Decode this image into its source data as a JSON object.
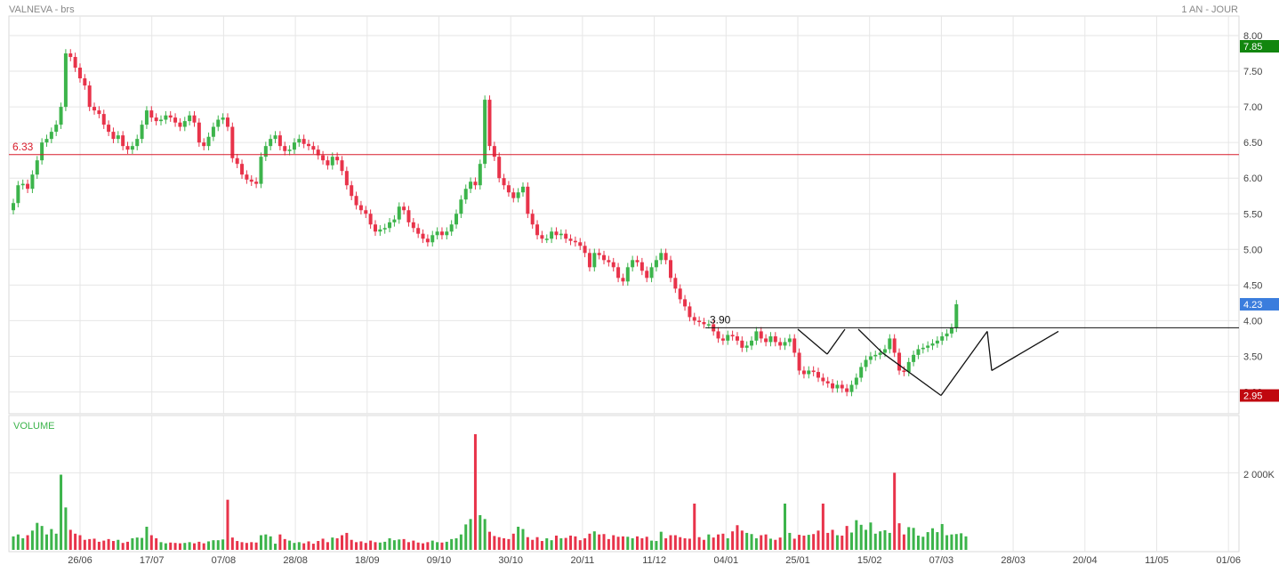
{
  "header": {
    "title": "VALNEVA - brs",
    "period": "1 AN - JOUR"
  },
  "colors": {
    "up": "#3cb44b",
    "down": "#e8334a",
    "grid": "#e6e6e6",
    "resistance": "#d81b2a",
    "neckline": "#111111",
    "last_price_badge": "#3b7ddd",
    "high_badge": "#12860f",
    "low_badge": "#c0080f",
    "volume_label": "#3cb44b"
  },
  "chart_data": [
    {
      "type": "candlestick",
      "title": "VALNEVA - brs",
      "x_tick_labels": [
        "26/06",
        "17/07",
        "07/08",
        "28/08",
        "18/09",
        "09/10",
        "30/10",
        "20/11",
        "11/12",
        "04/01",
        "25/01",
        "15/02",
        "07/03",
        "28/03",
        "20/04",
        "11/05",
        "01/06"
      ],
      "y_tick_labels": [
        "8.00",
        "7.50",
        "7.00",
        "6.50",
        "6.00",
        "5.50",
        "5.00",
        "4.50",
        "4.00",
        "3.50",
        "3.00"
      ],
      "ylim": [
        2.7,
        8.3
      ],
      "grid": true,
      "candles_close": [
        5.65,
        5.9,
        5.92,
        5.85,
        6.05,
        6.25,
        6.5,
        6.55,
        6.65,
        6.75,
        7.0,
        7.75,
        7.7,
        7.55,
        7.4,
        7.3,
        7.0,
        6.95,
        6.9,
        6.75,
        6.65,
        6.55,
        6.6,
        6.45,
        6.4,
        6.45,
        6.55,
        6.75,
        6.95,
        6.85,
        6.8,
        6.82,
        6.88,
        6.85,
        6.78,
        6.72,
        6.8,
        6.88,
        6.78,
        6.5,
        6.45,
        6.58,
        6.72,
        6.82,
        6.85,
        6.72,
        6.28,
        6.2,
        6.05,
        5.98,
        5.95,
        5.92,
        6.3,
        6.45,
        6.55,
        6.6,
        6.45,
        6.38,
        6.4,
        6.5,
        6.55,
        6.48,
        6.45,
        6.4,
        6.32,
        6.25,
        6.18,
        6.3,
        6.25,
        6.1,
        5.9,
        5.75,
        5.62,
        5.55,
        5.5,
        5.35,
        5.25,
        5.28,
        5.3,
        5.38,
        5.42,
        5.6,
        5.55,
        5.38,
        5.3,
        5.22,
        5.15,
        5.1,
        5.2,
        5.25,
        5.2,
        5.25,
        5.35,
        5.5,
        5.7,
        5.85,
        5.95,
        5.9,
        6.2,
        7.1,
        6.45,
        6.3,
        6.0,
        5.9,
        5.8,
        5.72,
        5.8,
        5.88,
        5.5,
        5.35,
        5.2,
        5.15,
        5.15,
        5.25,
        5.2,
        5.22,
        5.15,
        5.12,
        5.1,
        5.05,
        4.95,
        4.75,
        4.95,
        4.92,
        4.85,
        4.82,
        4.75,
        4.6,
        4.55,
        4.75,
        4.85,
        4.82,
        4.7,
        4.6,
        4.75,
        4.85,
        4.95,
        4.85,
        4.6,
        4.45,
        4.3,
        4.2,
        4.05,
        4.0,
        3.98,
        3.95,
        3.95,
        3.85,
        3.75,
        3.72,
        3.8,
        3.78,
        3.72,
        3.62,
        3.65,
        3.72,
        3.85,
        3.75,
        3.7,
        3.78,
        3.7,
        3.65,
        3.7,
        3.75,
        3.55,
        3.3,
        3.25,
        3.3,
        3.28,
        3.2,
        3.15,
        3.12,
        3.05,
        3.1,
        3.05,
        3.0,
        3.1,
        3.2,
        3.35,
        3.45,
        3.5,
        3.52,
        3.55,
        3.6,
        3.75,
        3.55,
        3.3,
        3.28,
        3.42,
        3.52,
        3.6,
        3.62,
        3.65,
        3.68,
        3.72,
        3.78,
        3.82,
        3.9,
        4.23
      ],
      "last_price_label": "4.23",
      "period_high_label": "7.85",
      "period_low_label": "2.95",
      "resistance_label": "6.33",
      "neckline_label": "3.90",
      "grid_lines": true,
      "pattern": "double bottom / inverse head and shoulders with neckline breakout"
    },
    {
      "type": "bar",
      "title": "VOLUME",
      "y_tick_labels": [
        "2 000K"
      ],
      "ylim": [
        0,
        3000
      ],
      "volumes_k": [
        350,
        400,
        300,
        380,
        500,
        700,
        620,
        400,
        540,
        420,
        1950,
        1100,
        520,
        420,
        380,
        260,
        280,
        290,
        210,
        240,
        280,
        230,
        260,
        180,
        210,
        300,
        320,
        310,
        600,
        380,
        300,
        200,
        170,
        190,
        180,
        170,
        180,
        200,
        170,
        210,
        170,
        220,
        250,
        250,
        270,
        1300,
        320,
        230,
        200,
        180,
        200,
        190,
        380,
        400,
        350,
        160,
        400,
        280,
        240,
        180,
        200,
        170,
        220,
        160,
        230,
        290,
        200,
        320,
        300,
        380,
        440,
        260,
        200,
        220,
        180,
        240,
        200,
        190,
        210,
        300,
        250,
        270,
        280,
        200,
        240,
        190,
        170,
        200,
        240,
        200,
        190,
        210,
        280,
        300,
        400,
        660,
        800,
        3000,
        900,
        800,
        470,
        360,
        330,
        300,
        280,
        420,
        600,
        540,
        330,
        260,
        330,
        230,
        300,
        250,
        370,
        300,
        310,
        370,
        350,
        250,
        300,
        420,
        480,
        400,
        410,
        280,
        380,
        340,
        350,
        340,
        300,
        350,
        300,
        340,
        240,
        230,
        470,
        300,
        380,
        380,
        330,
        300,
        290,
        1200,
        330,
        260,
        400,
        320,
        400,
        420,
        300,
        480,
        640,
        500,
        440,
        410,
        300,
        380,
        400,
        290,
        260,
        320,
        1200,
        440,
        290,
        390,
        370,
        390,
        410,
        500,
        1200,
        440,
        520,
        380,
        370,
        620,
        450,
        770,
        650,
        520,
        710,
        420,
        480,
        510,
        440,
        2000,
        690,
        400,
        590,
        570,
        370,
        340,
        460,
        560,
        460,
        670,
        380,
        400,
        410,
        430,
        350
      ]
    }
  ],
  "volume_panel": {
    "label": "VOLUME",
    "tick_label": "2 000K"
  }
}
